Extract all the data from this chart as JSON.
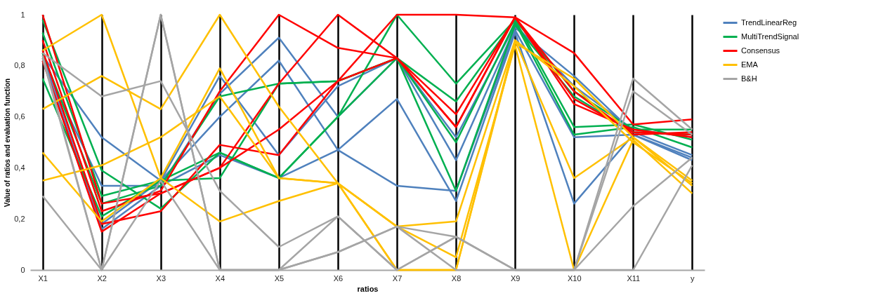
{
  "chart_data": {
    "type": "line",
    "xlabel": "ratios",
    "ylabel": "Value of ratios and evaluation function",
    "categories": [
      "X1",
      "X2",
      "X3",
      "X4",
      "X5",
      "X6",
      "X7",
      "X8",
      "X9",
      "X10",
      "X11",
      "y"
    ],
    "ylim": [
      0,
      1
    ],
    "yticks": [
      0,
      {
        "value": 0.2,
        "label": "0,2"
      },
      {
        "value": 0.4,
        "label": "0,4"
      },
      {
        "value": 0.6,
        "label": "0,6"
      },
      {
        "value": 0.8,
        "label": "0,8"
      },
      1
    ],
    "grid": "x",
    "legend": "right",
    "marker": "none",
    "line_style": "solid",
    "series": [
      {
        "name": "TrendLinearReg",
        "color": "#4f81bd",
        "values": [
          0.84,
          0.52,
          0.35,
          0.76,
          0.45,
          0.72,
          0.83,
          0.52,
          0.96,
          0.72,
          0.55,
          0.52
        ]
      },
      {
        "color": "#4f81bd",
        "values": [
          0.82,
          0.33,
          0.33,
          0.69,
          0.91,
          0.6,
          0.83,
          0.43,
          0.95,
          0.76,
          0.54,
          0.45
        ]
      },
      {
        "color": "#4f81bd",
        "values": [
          0.85,
          0.18,
          0.35,
          0.6,
          0.82,
          0.47,
          0.67,
          0.27,
          0.93,
          0.26,
          0.53,
          0.43
        ]
      },
      {
        "color": "#4f81bd",
        "values": [
          0.83,
          0.16,
          0.33,
          0.45,
          0.36,
          0.47,
          0.33,
          0.31,
          0.94,
          0.52,
          0.53,
          0.44
        ]
      },
      {
        "name": "MultiTrendSignal",
        "color": "#00b050",
        "values": [
          0.98,
          0.39,
          0.24,
          0.46,
          0.36,
          0.6,
          1,
          0.73,
          0.98,
          0.7,
          0.55,
          0.55
        ]
      },
      {
        "color": "#00b050",
        "values": [
          0.93,
          0.29,
          0.35,
          0.36,
          0.73,
          0.74,
          0.83,
          0.66,
          0.98,
          0.56,
          0.57,
          0.51
        ]
      },
      {
        "color": "#00b050",
        "values": [
          0.85,
          0.26,
          0.33,
          0.68,
          0.73,
          0.74,
          0.83,
          0.5,
          0.97,
          0.53,
          0.56,
          0.48
        ]
      },
      {
        "color": "#00b050",
        "values": [
          0.75,
          0.21,
          0.35,
          0.46,
          0.36,
          0.6,
          0.83,
          0.31,
          0.96,
          0.68,
          0.54,
          0.53
        ]
      },
      {
        "name": "Consensus",
        "color": "#ff0000",
        "values": [
          1,
          0.26,
          0.3,
          0.4,
          0.73,
          1,
          0.83,
          0.61,
          0.99,
          0.85,
          0.57,
          0.59
        ]
      },
      {
        "color": "#ff0000",
        "values": [
          0.9,
          0.23,
          0.31,
          0.7,
          1,
          0.87,
          0.83,
          0.56,
          0.99,
          0.67,
          0.54,
          0.53
        ]
      },
      {
        "color": "#ff0000",
        "values": [
          0.86,
          0.18,
          0.23,
          0.49,
          0.45,
          0.74,
          1,
          1,
          0.99,
          0.65,
          0.55,
          0.52
        ]
      },
      {
        "color": "#ff0000",
        "values": [
          0.82,
          0.15,
          0.3,
          0.4,
          0.55,
          0.74,
          0.83,
          0.56,
          0.99,
          0.7,
          0.53,
          0.54
        ]
      },
      {
        "name": "EMA",
        "color": "#ffc000",
        "values": [
          0.86,
          1,
          0.36,
          0.19,
          0.27,
          0.34,
          0.17,
          0.19,
          0.9,
          0.36,
          0.52,
          0.35
        ]
      },
      {
        "color": "#ffc000",
        "values": [
          0.63,
          0.76,
          0.63,
          1,
          0.64,
          0.34,
          0,
          0,
          0.89,
          0.75,
          0.52,
          0.33
        ]
      },
      {
        "color": "#ffc000",
        "values": [
          0.46,
          0.19,
          0.36,
          0.79,
          0.36,
          0.34,
          0.17,
          0.05,
          0.88,
          0,
          0.51,
          0.3
        ]
      },
      {
        "color": "#ffc000",
        "values": [
          0.35,
          0.41,
          0.52,
          0.68,
          0.36,
          0.34,
          0,
          0,
          0.9,
          0.72,
          0.5,
          0.34
        ]
      },
      {
        "name": "B&H",
        "color": "#a5a5a5",
        "values": [
          0.85,
          0.68,
          0.74,
          0.31,
          0.09,
          0.21,
          0,
          0.13,
          0,
          0,
          0.75,
          0.55
        ]
      },
      {
        "color": "#a5a5a5",
        "values": [
          0.29,
          0,
          1,
          0,
          0,
          0.07,
          0.17,
          0.13,
          0,
          0,
          0.7,
          0.53
        ]
      },
      {
        "color": "#a5a5a5",
        "values": [
          0.84,
          0,
          1,
          0,
          0,
          0.21,
          0,
          0.13,
          0,
          0,
          0.25,
          0.44
        ]
      },
      {
        "color": "#a5a5a5",
        "values": [
          0.83,
          0,
          0.35,
          0,
          0,
          0.07,
          0.17,
          0,
          0,
          0,
          0,
          0.41
        ]
      }
    ]
  }
}
